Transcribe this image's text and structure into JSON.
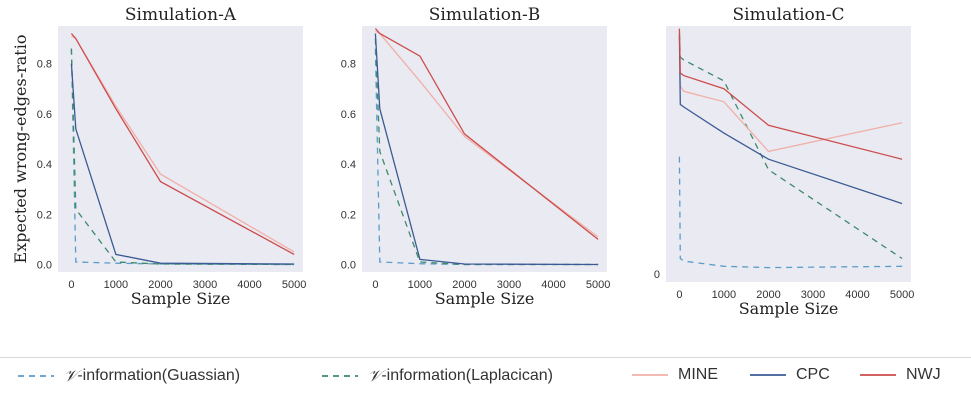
{
  "chart_data": [
    {
      "type": "line",
      "title": "Simulation-A",
      "xlabel": "Sample Size",
      "ylabel": "Expected wrong-edges-ratio",
      "xticks": [
        0,
        1000,
        2000,
        3000,
        4000,
        5000
      ],
      "yticks": [
        0.0,
        0.2,
        0.4,
        0.6,
        0.8
      ],
      "xlim": [
        -300,
        5200
      ],
      "ylim": [
        -0.03,
        0.95
      ],
      "series": [
        {
          "name": "V-information(Guassian)",
          "x": [
            0,
            100,
            1000,
            2000,
            5000
          ],
          "y": [
            0.86,
            0.01,
            0.005,
            0.002,
            0.0
          ]
        },
        {
          "name": "V-information(Laplacican)",
          "x": [
            0,
            100,
            1000,
            2000,
            5000
          ],
          "y": [
            0.86,
            0.22,
            0.01,
            0.002,
            0.0
          ]
        },
        {
          "name": "MINE",
          "x": [
            0,
            100,
            1000,
            2000,
            5000
          ],
          "y": [
            0.91,
            0.9,
            0.63,
            0.36,
            0.05
          ]
        },
        {
          "name": "CPC",
          "x": [
            0,
            100,
            1000,
            2000,
            5000
          ],
          "y": [
            0.8,
            0.54,
            0.04,
            0.005,
            0.002
          ]
        },
        {
          "name": "NWJ",
          "x": [
            0,
            100,
            1000,
            2000,
            5000
          ],
          "y": [
            0.92,
            0.9,
            0.62,
            0.33,
            0.04
          ]
        }
      ]
    },
    {
      "type": "line",
      "title": "Simulation-B",
      "xlabel": "Sample Size",
      "ylabel": "",
      "xticks": [
        0,
        1000,
        2000,
        3000,
        4000,
        5000
      ],
      "yticks": [
        0.0,
        0.2,
        0.4,
        0.6,
        0.8
      ],
      "xlim": [
        -300,
        5200
      ],
      "ylim": [
        -0.03,
        0.95
      ],
      "series": [
        {
          "name": "V-information(Guassian)",
          "x": [
            0,
            100,
            1000,
            2000,
            5000
          ],
          "y": [
            0.86,
            0.01,
            0.003,
            0.0,
            0.0
          ]
        },
        {
          "name": "V-information(Laplacican)",
          "x": [
            0,
            100,
            1000,
            2000,
            5000
          ],
          "y": [
            0.9,
            0.45,
            0.01,
            0.0,
            0.0
          ]
        },
        {
          "name": "MINE",
          "x": [
            0,
            100,
            1000,
            2000,
            5000
          ],
          "y": [
            0.93,
            0.92,
            0.73,
            0.51,
            0.11
          ]
        },
        {
          "name": "CPC",
          "x": [
            0,
            100,
            1000,
            2000,
            5000
          ],
          "y": [
            0.92,
            0.62,
            0.02,
            0.002,
            0.0
          ]
        },
        {
          "name": "NWJ",
          "x": [
            0,
            100,
            1000,
            2000,
            5000
          ],
          "y": [
            0.94,
            0.92,
            0.83,
            0.52,
            0.1
          ]
        }
      ]
    },
    {
      "type": "line",
      "title": "Simulation-C",
      "xlabel": "Sample Size",
      "ylabel": "",
      "xticks": [
        0,
        1000,
        2000,
        3000,
        4000,
        5000
      ],
      "yticks": [
        0
      ],
      "xlim": [
        -300,
        5200
      ],
      "ylim": [
        -0.03,
        0.95
      ],
      "series": [
        {
          "name": "V-information(Guassian)",
          "x": [
            0,
            20,
            100,
            1000,
            2000,
            5000
          ],
          "y": [
            0.45,
            0.06,
            0.05,
            0.03,
            0.025,
            0.03
          ]
        },
        {
          "name": "V-information(Laplacican)",
          "x": [
            0,
            20,
            100,
            1000,
            2000,
            5000
          ],
          "y": [
            0.92,
            0.83,
            0.82,
            0.74,
            0.4,
            0.06
          ]
        },
        {
          "name": "MINE",
          "x": [
            0,
            20,
            100,
            1000,
            2000,
            5000
          ],
          "y": [
            0.93,
            0.72,
            0.7,
            0.66,
            0.47,
            0.58
          ]
        },
        {
          "name": "CPC",
          "x": [
            0,
            20,
            100,
            1000,
            2000,
            5000
          ],
          "y": [
            0.91,
            0.65,
            0.64,
            0.54,
            0.44,
            0.27
          ]
        },
        {
          "name": "NWJ",
          "x": [
            0,
            20,
            100,
            1000,
            2000,
            5000
          ],
          "y": [
            0.94,
            0.77,
            0.76,
            0.71,
            0.57,
            0.44
          ]
        }
      ]
    }
  ],
  "styles": {
    "V-information(Guassian)": {
      "color": "#5b9cc8",
      "dash": "6,5"
    },
    "V-information(Laplacican)": {
      "color": "#3f8a6a",
      "dash": "6,5"
    },
    "MINE": {
      "color": "#f0b0a8",
      "dash": ""
    },
    "CPC": {
      "color": "#3b5b94",
      "dash": ""
    },
    "NWJ": {
      "color": "#cc4d4d",
      "dash": ""
    }
  },
  "plot_bg": "#eaeaf2",
  "legend": {
    "items": [
      {
        "prefix": "𝒱",
        "label": "-information(Guassian)",
        "series": "V-information(Guassian)"
      },
      {
        "prefix": "𝒱",
        "label": "-information(Laplacican)",
        "series": "V-information(Laplacican)"
      },
      {
        "prefix": "",
        "label": "MINE",
        "series": "MINE"
      },
      {
        "prefix": "",
        "label": "CPC",
        "series": "CPC"
      },
      {
        "prefix": "",
        "label": "NWJ",
        "series": "NWJ"
      }
    ]
  }
}
